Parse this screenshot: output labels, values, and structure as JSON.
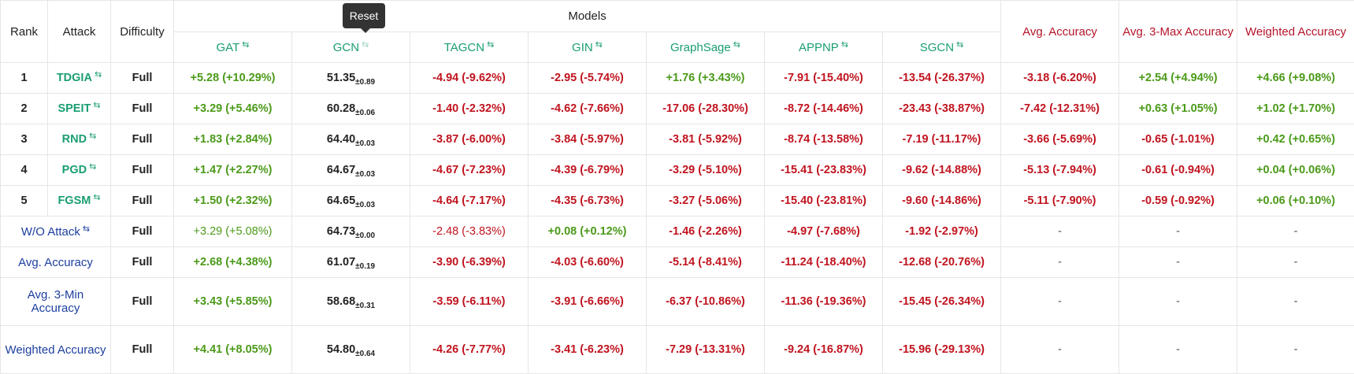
{
  "tooltip": "Reset",
  "header": {
    "rank": "Rank",
    "attack": "Attack",
    "difficulty": "Difficulty",
    "models": "Models",
    "model_cols": [
      "GAT",
      "GCN",
      "TAGCN",
      "GIN",
      "GraphSage",
      "APPNP",
      "SGCN"
    ],
    "avg_accuracy": "Avg. Accuracy",
    "avg3max": "Avg. 3-Max Accuracy",
    "weighted": "Weighted Accuracy",
    "sort_glyph": "⇆"
  },
  "rows": [
    {
      "rank": "1",
      "attack": "TDGIA",
      "difficulty": "Full",
      "gat": "+5.28 (+10.29%)",
      "gcn": "51.35",
      "gcn_std": "±0.89",
      "tagcn": "-4.94 (-9.62%)",
      "gin": "-2.95 (-5.74%)",
      "graphsage": "+1.76 (+3.43%)",
      "appnp": "-7.91 (-15.40%)",
      "sgcn": "-13.54 (-26.37%)",
      "avg": "-3.18 (-6.20%)",
      "avg3max": "+2.54 (+4.94%)",
      "weighted": "+4.66 (+9.08%)"
    },
    {
      "rank": "2",
      "attack": "SPEIT",
      "difficulty": "Full",
      "gat": "+3.29 (+5.46%)",
      "gcn": "60.28",
      "gcn_std": "±0.06",
      "tagcn": "-1.40 (-2.32%)",
      "gin": "-4.62 (-7.66%)",
      "graphsage": "-17.06 (-28.30%)",
      "appnp": "-8.72 (-14.46%)",
      "sgcn": "-23.43 (-38.87%)",
      "avg": "-7.42 (-12.31%)",
      "avg3max": "+0.63 (+1.05%)",
      "weighted": "+1.02 (+1.70%)"
    },
    {
      "rank": "3",
      "attack": "RND",
      "difficulty": "Full",
      "gat": "+1.83 (+2.84%)",
      "gcn": "64.40",
      "gcn_std": "±0.03",
      "tagcn": "-3.87 (-6.00%)",
      "gin": "-3.84 (-5.97%)",
      "graphsage": "-3.81 (-5.92%)",
      "appnp": "-8.74 (-13.58%)",
      "sgcn": "-7.19 (-11.17%)",
      "avg": "-3.66 (-5.69%)",
      "avg3max": "-0.65 (-1.01%)",
      "weighted": "+0.42 (+0.65%)"
    },
    {
      "rank": "4",
      "attack": "PGD",
      "difficulty": "Full",
      "gat": "+1.47 (+2.27%)",
      "gcn": "64.67",
      "gcn_std": "±0.03",
      "tagcn": "-4.67 (-7.23%)",
      "gin": "-4.39 (-6.79%)",
      "graphsage": "-3.29 (-5.10%)",
      "appnp": "-15.41 (-23.83%)",
      "sgcn": "-9.62 (-14.88%)",
      "avg": "-5.13 (-7.94%)",
      "avg3max": "-0.61 (-0.94%)",
      "weighted": "+0.04 (+0.06%)"
    },
    {
      "rank": "5",
      "attack": "FGSM",
      "difficulty": "Full",
      "gat": "+1.50 (+2.32%)",
      "gcn": "64.65",
      "gcn_std": "±0.03",
      "tagcn": "-4.64 (-7.17%)",
      "gin": "-4.35 (-6.73%)",
      "graphsage": "-3.27 (-5.06%)",
      "appnp": "-15.40 (-23.81%)",
      "sgcn": "-9.60 (-14.86%)",
      "avg": "-5.11 (-7.90%)",
      "avg3max": "-0.59 (-0.92%)",
      "weighted": "+0.06 (+0.10%)"
    }
  ],
  "summary_rows": [
    {
      "label": "W/O Attack",
      "difficulty": "Full",
      "gat": "+3.29 (+5.08%)",
      "gcn": "64.73",
      "gcn_std": "±0.00",
      "tagcn": "-2.48 (-3.83%)",
      "gin": "+0.08 (+0.12%)",
      "graphsage": "-1.46 (-2.26%)",
      "appnp": "-4.97 (-7.68%)",
      "sgcn": "-1.92 (-2.97%)",
      "avg": "-",
      "avg3max": "-",
      "weighted": "-"
    },
    {
      "label": "Avg. Accuracy",
      "difficulty": "Full",
      "gat": "+2.68 (+4.38%)",
      "gcn": "61.07",
      "gcn_std": "±0.19",
      "tagcn": "-3.90 (-6.39%)",
      "gin": "-4.03 (-6.60%)",
      "graphsage": "-5.14 (-8.41%)",
      "appnp": "-11.24 (-18.40%)",
      "sgcn": "-12.68 (-20.76%)",
      "avg": "-",
      "avg3max": "-",
      "weighted": "-"
    },
    {
      "label": "Avg. 3-Min Accuracy",
      "difficulty": "Full",
      "gat": "+3.43 (+5.85%)",
      "gcn": "58.68",
      "gcn_std": "±0.31",
      "tagcn": "-3.59 (-6.11%)",
      "gin": "-3.91 (-6.66%)",
      "graphsage": "-6.37 (-10.86%)",
      "appnp": "-11.36 (-19.36%)",
      "sgcn": "-15.45 (-26.34%)",
      "avg": "-",
      "avg3max": "-",
      "weighted": "-"
    },
    {
      "label": "Weighted Accuracy",
      "difficulty": "Full",
      "gat": "+4.41 (+8.05%)",
      "gcn": "54.80",
      "gcn_std": "±0.64",
      "tagcn": "-4.26 (-7.77%)",
      "gin": "-3.41 (-6.23%)",
      "graphsage": "-7.29 (-13.31%)",
      "appnp": "-9.24 (-16.87%)",
      "sgcn": "-15.96 (-29.13%)",
      "avg": "-",
      "avg3max": "-",
      "weighted": "-"
    }
  ],
  "colors": {
    "teal": "#1a9e72",
    "crimson": "#b5152b",
    "green": "#4b9a19",
    "red": "#c0141f",
    "navy": "#1d3f9e"
  }
}
